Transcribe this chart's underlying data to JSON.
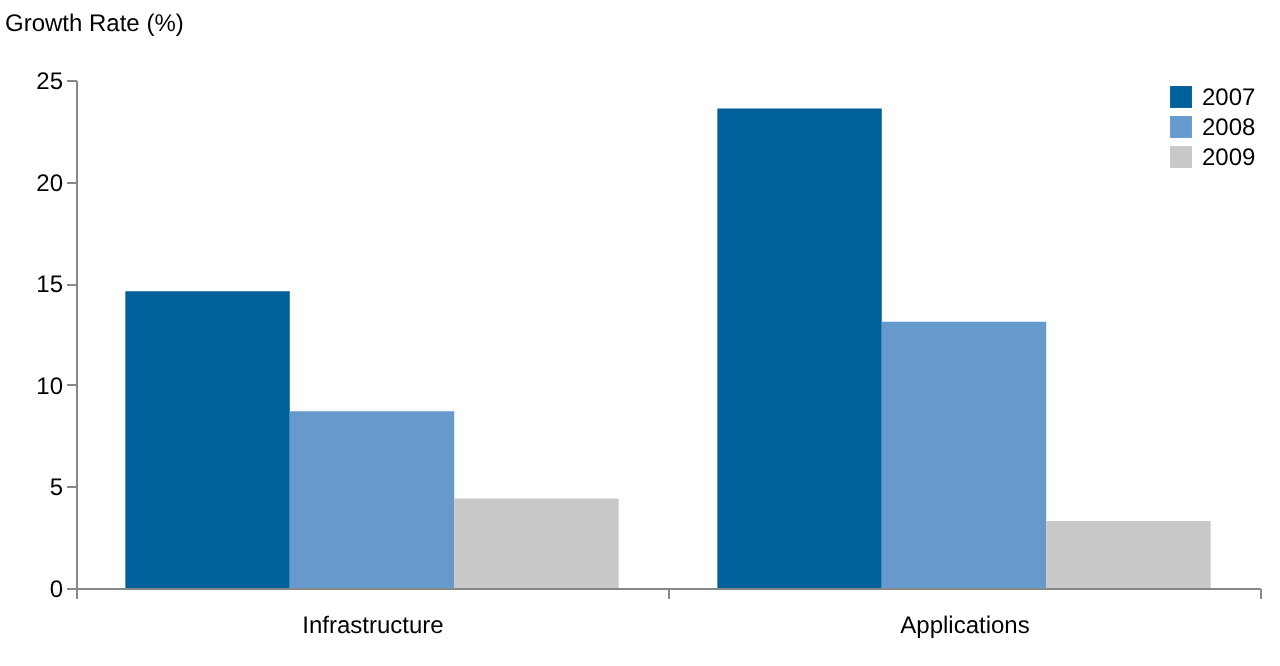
{
  "chart_data": {
    "type": "bar",
    "ylabel": "Growth Rate (%)",
    "categories": [
      "Infrastructure",
      "Applications"
    ],
    "series": [
      {
        "name": "2007",
        "color": "#00609c",
        "values": [
          14.6,
          23.6
        ]
      },
      {
        "name": "2008",
        "color": "#6699cc",
        "values": [
          8.7,
          13.1
        ]
      },
      {
        "name": "2009",
        "color": "#c8c8c8",
        "values": [
          4.4,
          3.3
        ]
      }
    ],
    "ylim": [
      0,
      25
    ],
    "yticks": [
      0,
      5,
      10,
      15,
      20,
      25
    ],
    "grid": false,
    "legend": "top right"
  }
}
